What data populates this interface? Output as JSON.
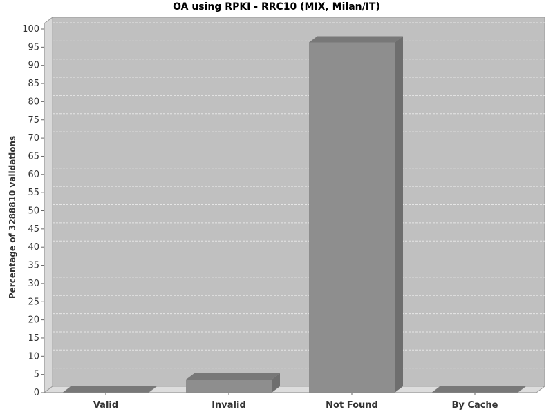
{
  "chart_data": {
    "type": "bar",
    "title": "OA using RPKI - RRC10 (MIX, Milan/IT)",
    "xlabel": "",
    "ylabel": "Percentage of 3288810 validations",
    "categories": [
      "Valid",
      "Invalid",
      "Not Found",
      "By Cache"
    ],
    "values": [
      0.1,
      3.6,
      96.3,
      0.1
    ],
    "ylim": [
      0,
      100
    ],
    "yticks": [
      "0",
      "5",
      "10",
      "15",
      "20",
      "25",
      "30",
      "35",
      "40",
      "45",
      "50",
      "55",
      "60",
      "65",
      "70",
      "75",
      "80",
      "85",
      "90",
      "95",
      "100"
    ],
    "grid": true,
    "colors": {
      "bar_front": "#8e8e8e",
      "bar_side": "#6e6e6e",
      "bar_top": "#787878",
      "plot_bg": "#c0c0c0",
      "wall_left": "#d9d9d9",
      "floor": "#dddddd",
      "gridline": "#e6e6e6"
    }
  }
}
